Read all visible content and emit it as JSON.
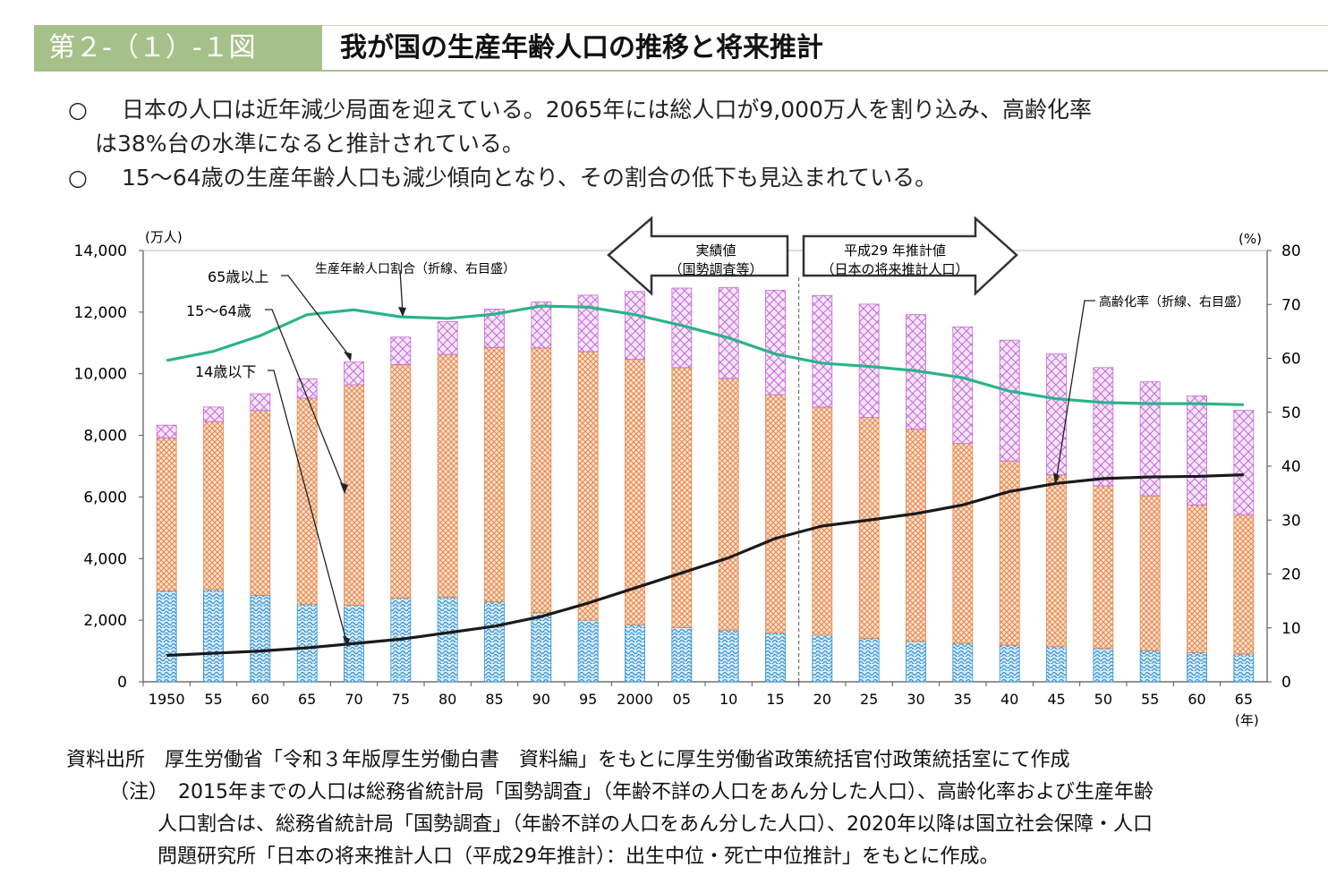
{
  "header": {
    "figure_no": "第２-（１）-１図",
    "title": "我が国の生産年齢人口の推移と将来推計"
  },
  "bullets": [
    {
      "mark": "○",
      "line1": "日本の人口は近年減少局面を迎えている。2065年には総人口が9,000万人を割り込み、高齢化率",
      "line2": "は38%台の水準になると推計されている。"
    },
    {
      "mark": "○",
      "line1": "15～64歳の生産年齢人口も減少傾向となり、その割合の低下も見込まれている。"
    }
  ],
  "chart_data": {
    "type": "bar",
    "stacked": true,
    "categories": [
      "1950",
      "55",
      "60",
      "65",
      "70",
      "75",
      "80",
      "85",
      "90",
      "95",
      "2000",
      "05",
      "10",
      "15",
      "20",
      "25",
      "30",
      "35",
      "40",
      "45",
      "50",
      "55",
      "60",
      "65"
    ],
    "series": [
      {
        "name": "14歳以下",
        "values": [
          2950,
          2990,
          2810,
          2520,
          2480,
          2720,
          2750,
          2600,
          2250,
          2000,
          1850,
          1760,
          1680,
          1590,
          1510,
          1410,
          1320,
          1250,
          1190,
          1140,
          1080,
          1010,
          950,
          900
        ]
      },
      {
        "name": "15～64歳",
        "values": [
          4970,
          5460,
          6000,
          6690,
          7160,
          7580,
          7880,
          8250,
          8590,
          8720,
          8620,
          8440,
          8170,
          7730,
          7410,
          7170,
          6880,
          6490,
          5980,
          5580,
          5280,
          5030,
          4790,
          4530
        ]
      },
      {
        "name": "65歳以上",
        "values": [
          410,
          470,
          540,
          620,
          740,
          890,
          1060,
          1250,
          1490,
          1830,
          2200,
          2580,
          2950,
          3390,
          3620,
          3680,
          3720,
          3780,
          3920,
          3920,
          3840,
          3700,
          3540,
          3380
        ]
      }
    ],
    "lines": [
      {
        "name": "生産年齢人口割合（折線、右目盛）",
        "axis": "right",
        "color": "#2bb38a",
        "values": [
          59.6,
          61.3,
          64.2,
          68.1,
          69.0,
          67.7,
          67.4,
          68.2,
          69.7,
          69.5,
          68.1,
          66.1,
          63.8,
          60.8,
          59.1,
          58.5,
          57.7,
          56.4,
          53.9,
          52.5,
          51.8,
          51.6,
          51.6,
          51.4
        ]
      },
      {
        "name": "高齢化率（折線、右目盛）",
        "axis": "right",
        "color": "#1a1a1a",
        "values": [
          4.9,
          5.3,
          5.7,
          6.3,
          7.1,
          7.9,
          9.1,
          10.3,
          12.1,
          14.6,
          17.4,
          20.2,
          23.0,
          26.6,
          28.9,
          30.0,
          31.2,
          32.8,
          35.3,
          36.8,
          37.7,
          38.0,
          38.1,
          38.4
        ]
      }
    ],
    "y_left": {
      "label": "(万人)",
      "ylim": [
        0,
        14000
      ],
      "ticks": [
        "0",
        "2,000",
        "4,000",
        "6,000",
        "8,000",
        "10,000",
        "12,000",
        "14,000"
      ]
    },
    "y_right": {
      "label": "(%)",
      "ylim": [
        0,
        80
      ],
      "ticks": [
        "0",
        "10",
        "20",
        "30",
        "40",
        "50",
        "60",
        "70",
        "80"
      ]
    },
    "x_unit": "(年)",
    "annotations": {
      "actual": [
        "実績値",
        "（国勢調査等）"
      ],
      "projection": [
        "平成29 年推計値",
        "（日本の将来推計人口）"
      ],
      "label_65": "65歳以上",
      "label_1564": "15～64歳",
      "label_14": "14歳以下",
      "label_working_ratio": "生産年齢人口割合（折線、右目盛）",
      "label_aging": "高齢化率（折線、右目盛）"
    },
    "colors": {
      "u14": "#2e8fd6",
      "u14_bg": "#d9ecfa",
      "w1564": "#e8874c",
      "w1564_bg": "#fbe3d2",
      "o65": "#c468d8",
      "o65_bg": "#f3dcf9",
      "working_line": "#2bb38a",
      "aging_line": "#1a1a1a"
    }
  },
  "notes": {
    "source": "資料出所　厚生労働省「令和３年版厚生労働白書　資料編」をもとに厚生労働省政策統括官付政策統括室にて作成",
    "note1": "（注）　2015年までの人口は総務省統計局「国勢調査」（年齢不詳の人口をあん分した人口）、高齢化率および生産年齢",
    "note2": "人口割合は、総務省統計局「国勢調査」（年齢不詳の人口をあん分した人口）、2020年以降は国立社会保障・人口",
    "note3": "問題研究所「日本の将来推計人口（平成29年推計）：出生中位・死亡中位推計」をもとに作成。"
  }
}
